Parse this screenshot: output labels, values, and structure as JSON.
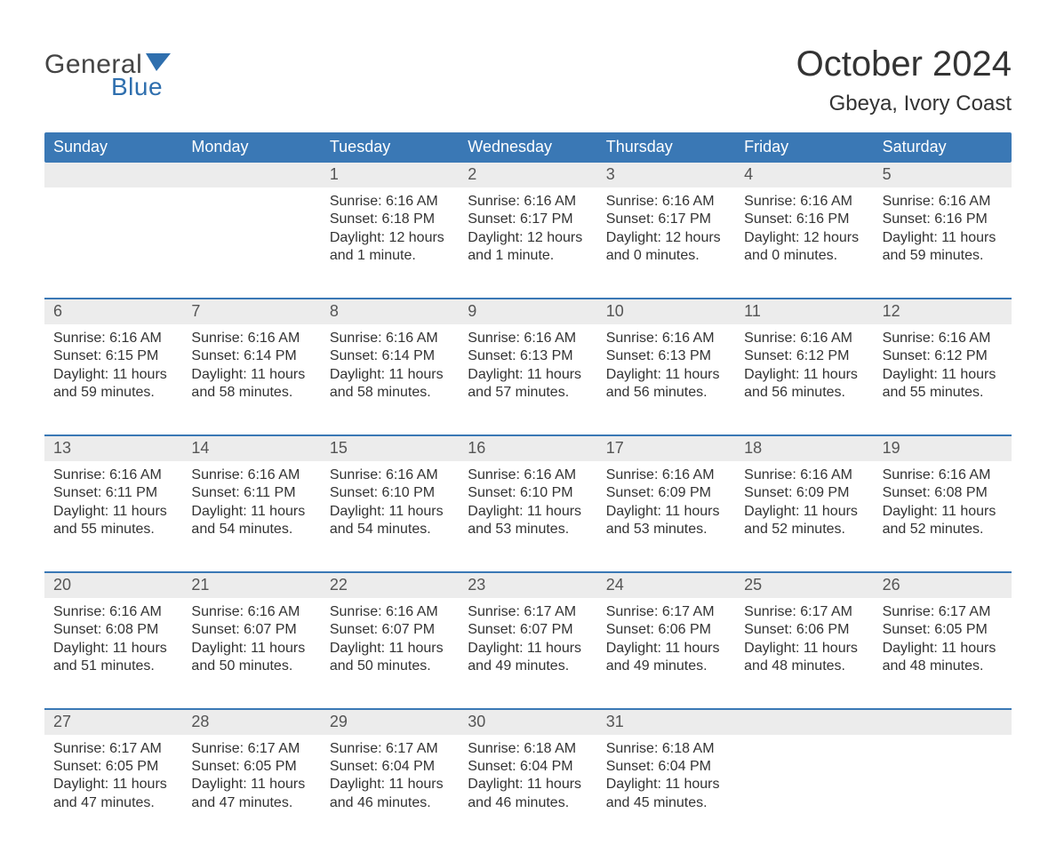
{
  "brand": {
    "word_general": "General",
    "word_blue": "Blue",
    "flag_color": "#2f6fae",
    "text_gray": "#444444"
  },
  "header": {
    "title": "October 2024",
    "location": "Gbeya, Ivory Coast",
    "title_color": "#333333",
    "title_fontsize": 40,
    "location_fontsize": 24
  },
  "calendar": {
    "weekday_bg": "#3a78b5",
    "weekday_fg": "#ffffff",
    "daynum_bg": "#ececec",
    "week_separator_color": "#3a78b5",
    "detail_text_color": "#333333",
    "weekdays": [
      "Sunday",
      "Monday",
      "Tuesday",
      "Wednesday",
      "Thursday",
      "Friday",
      "Saturday"
    ],
    "weeks": [
      [
        null,
        null,
        {
          "n": "1",
          "sunrise": "Sunrise: 6:16 AM",
          "sunset": "Sunset: 6:18 PM",
          "day1": "Daylight: 12 hours",
          "day2": "and 1 minute."
        },
        {
          "n": "2",
          "sunrise": "Sunrise: 6:16 AM",
          "sunset": "Sunset: 6:17 PM",
          "day1": "Daylight: 12 hours",
          "day2": "and 1 minute."
        },
        {
          "n": "3",
          "sunrise": "Sunrise: 6:16 AM",
          "sunset": "Sunset: 6:17 PM",
          "day1": "Daylight: 12 hours",
          "day2": "and 0 minutes."
        },
        {
          "n": "4",
          "sunrise": "Sunrise: 6:16 AM",
          "sunset": "Sunset: 6:16 PM",
          "day1": "Daylight: 12 hours",
          "day2": "and 0 minutes."
        },
        {
          "n": "5",
          "sunrise": "Sunrise: 6:16 AM",
          "sunset": "Sunset: 6:16 PM",
          "day1": "Daylight: 11 hours",
          "day2": "and 59 minutes."
        }
      ],
      [
        {
          "n": "6",
          "sunrise": "Sunrise: 6:16 AM",
          "sunset": "Sunset: 6:15 PM",
          "day1": "Daylight: 11 hours",
          "day2": "and 59 minutes."
        },
        {
          "n": "7",
          "sunrise": "Sunrise: 6:16 AM",
          "sunset": "Sunset: 6:14 PM",
          "day1": "Daylight: 11 hours",
          "day2": "and 58 minutes."
        },
        {
          "n": "8",
          "sunrise": "Sunrise: 6:16 AM",
          "sunset": "Sunset: 6:14 PM",
          "day1": "Daylight: 11 hours",
          "day2": "and 58 minutes."
        },
        {
          "n": "9",
          "sunrise": "Sunrise: 6:16 AM",
          "sunset": "Sunset: 6:13 PM",
          "day1": "Daylight: 11 hours",
          "day2": "and 57 minutes."
        },
        {
          "n": "10",
          "sunrise": "Sunrise: 6:16 AM",
          "sunset": "Sunset: 6:13 PM",
          "day1": "Daylight: 11 hours",
          "day2": "and 56 minutes."
        },
        {
          "n": "11",
          "sunrise": "Sunrise: 6:16 AM",
          "sunset": "Sunset: 6:12 PM",
          "day1": "Daylight: 11 hours",
          "day2": "and 56 minutes."
        },
        {
          "n": "12",
          "sunrise": "Sunrise: 6:16 AM",
          "sunset": "Sunset: 6:12 PM",
          "day1": "Daylight: 11 hours",
          "day2": "and 55 minutes."
        }
      ],
      [
        {
          "n": "13",
          "sunrise": "Sunrise: 6:16 AM",
          "sunset": "Sunset: 6:11 PM",
          "day1": "Daylight: 11 hours",
          "day2": "and 55 minutes."
        },
        {
          "n": "14",
          "sunrise": "Sunrise: 6:16 AM",
          "sunset": "Sunset: 6:11 PM",
          "day1": "Daylight: 11 hours",
          "day2": "and 54 minutes."
        },
        {
          "n": "15",
          "sunrise": "Sunrise: 6:16 AM",
          "sunset": "Sunset: 6:10 PM",
          "day1": "Daylight: 11 hours",
          "day2": "and 54 minutes."
        },
        {
          "n": "16",
          "sunrise": "Sunrise: 6:16 AM",
          "sunset": "Sunset: 6:10 PM",
          "day1": "Daylight: 11 hours",
          "day2": "and 53 minutes."
        },
        {
          "n": "17",
          "sunrise": "Sunrise: 6:16 AM",
          "sunset": "Sunset: 6:09 PM",
          "day1": "Daylight: 11 hours",
          "day2": "and 53 minutes."
        },
        {
          "n": "18",
          "sunrise": "Sunrise: 6:16 AM",
          "sunset": "Sunset: 6:09 PM",
          "day1": "Daylight: 11 hours",
          "day2": "and 52 minutes."
        },
        {
          "n": "19",
          "sunrise": "Sunrise: 6:16 AM",
          "sunset": "Sunset: 6:08 PM",
          "day1": "Daylight: 11 hours",
          "day2": "and 52 minutes."
        }
      ],
      [
        {
          "n": "20",
          "sunrise": "Sunrise: 6:16 AM",
          "sunset": "Sunset: 6:08 PM",
          "day1": "Daylight: 11 hours",
          "day2": "and 51 minutes."
        },
        {
          "n": "21",
          "sunrise": "Sunrise: 6:16 AM",
          "sunset": "Sunset: 6:07 PM",
          "day1": "Daylight: 11 hours",
          "day2": "and 50 minutes."
        },
        {
          "n": "22",
          "sunrise": "Sunrise: 6:16 AM",
          "sunset": "Sunset: 6:07 PM",
          "day1": "Daylight: 11 hours",
          "day2": "and 50 minutes."
        },
        {
          "n": "23",
          "sunrise": "Sunrise: 6:17 AM",
          "sunset": "Sunset: 6:07 PM",
          "day1": "Daylight: 11 hours",
          "day2": "and 49 minutes."
        },
        {
          "n": "24",
          "sunrise": "Sunrise: 6:17 AM",
          "sunset": "Sunset: 6:06 PM",
          "day1": "Daylight: 11 hours",
          "day2": "and 49 minutes."
        },
        {
          "n": "25",
          "sunrise": "Sunrise: 6:17 AM",
          "sunset": "Sunset: 6:06 PM",
          "day1": "Daylight: 11 hours",
          "day2": "and 48 minutes."
        },
        {
          "n": "26",
          "sunrise": "Sunrise: 6:17 AM",
          "sunset": "Sunset: 6:05 PM",
          "day1": "Daylight: 11 hours",
          "day2": "and 48 minutes."
        }
      ],
      [
        {
          "n": "27",
          "sunrise": "Sunrise: 6:17 AM",
          "sunset": "Sunset: 6:05 PM",
          "day1": "Daylight: 11 hours",
          "day2": "and 47 minutes."
        },
        {
          "n": "28",
          "sunrise": "Sunrise: 6:17 AM",
          "sunset": "Sunset: 6:05 PM",
          "day1": "Daylight: 11 hours",
          "day2": "and 47 minutes."
        },
        {
          "n": "29",
          "sunrise": "Sunrise: 6:17 AM",
          "sunset": "Sunset: 6:04 PM",
          "day1": "Daylight: 11 hours",
          "day2": "and 46 minutes."
        },
        {
          "n": "30",
          "sunrise": "Sunrise: 6:18 AM",
          "sunset": "Sunset: 6:04 PM",
          "day1": "Daylight: 11 hours",
          "day2": "and 46 minutes."
        },
        {
          "n": "31",
          "sunrise": "Sunrise: 6:18 AM",
          "sunset": "Sunset: 6:04 PM",
          "day1": "Daylight: 11 hours",
          "day2": "and 45 minutes."
        },
        null,
        null
      ]
    ]
  }
}
